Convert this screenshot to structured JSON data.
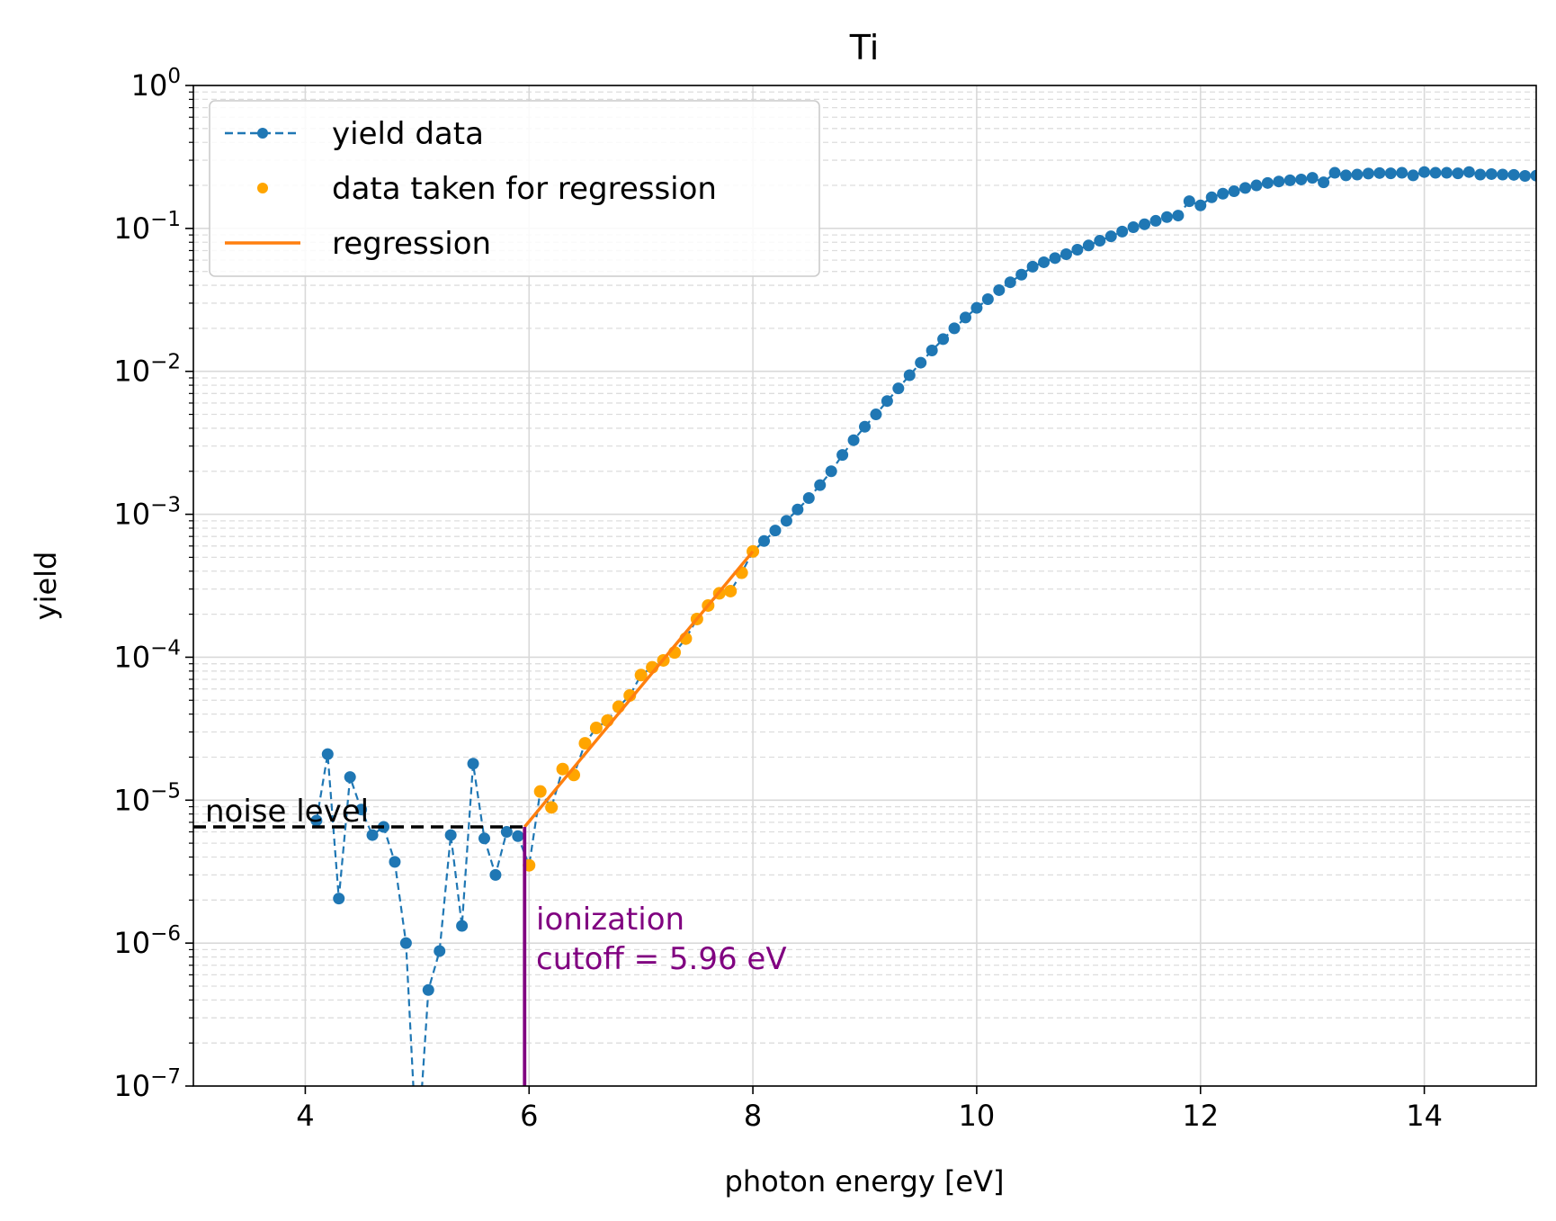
{
  "chart_data": {
    "type": "line",
    "title": "Ti",
    "xlabel": "photon energy [eV]",
    "ylabel": "yield",
    "xlim": [
      3,
      15
    ],
    "ylim": [
      1e-07,
      1
    ],
    "yscale": "log",
    "grid": true,
    "legend_position": "top-left",
    "x_ticks": [
      4,
      6,
      8,
      10,
      12,
      14
    ],
    "y_ticks": [
      {
        "mantissa": "10",
        "exp": "−7",
        "value": 1e-07
      },
      {
        "mantissa": "10",
        "exp": "−6",
        "value": 1e-06
      },
      {
        "mantissa": "10",
        "exp": "−5",
        "value": 1e-05
      },
      {
        "mantissa": "10",
        "exp": "−4",
        "value": 0.0001
      },
      {
        "mantissa": "10",
        "exp": "−3",
        "value": 0.001
      },
      {
        "mantissa": "10",
        "exp": "−2",
        "value": 0.01
      },
      {
        "mantissa": "10",
        "exp": "−1",
        "value": 0.1
      },
      {
        "mantissa": "10",
        "exp": "0",
        "value": 1
      }
    ],
    "legend": {
      "yield": "yield data",
      "regression_points": "data taken for regression",
      "regression": "regression"
    },
    "colors": {
      "yield": "#1f77b4",
      "regression_points": "#ffa500",
      "regression": "#ff7f0e",
      "noise": "#000000",
      "cutoff": "#800080",
      "grid_major": "#d9d9d9",
      "grid_minor": "#dddddd"
    },
    "series": [
      {
        "name": "yield data",
        "x": [
          4.1,
          4.2,
          4.3,
          4.4,
          4.5,
          4.6,
          4.7,
          4.8,
          4.9,
          5.0,
          5.1,
          5.2,
          5.3,
          5.4,
          5.5,
          5.6,
          5.7,
          5.8,
          5.9,
          6.0,
          6.1,
          6.2,
          6.3,
          6.4,
          6.5,
          6.6,
          6.7,
          6.8,
          6.9,
          7.0,
          7.1,
          7.2,
          7.3,
          7.4,
          7.5,
          7.6,
          7.7,
          7.8,
          7.9,
          8.0,
          8.1,
          8.2,
          8.3,
          8.4,
          8.5,
          8.6,
          8.7,
          8.8,
          8.9,
          9.0,
          9.1,
          9.2,
          9.3,
          9.4,
          9.5,
          9.6,
          9.7,
          9.8,
          9.9,
          10.0,
          10.1,
          10.2,
          10.3,
          10.4,
          10.5,
          10.6,
          10.7,
          10.8,
          10.9,
          11.0,
          11.1,
          11.2,
          11.3,
          11.4,
          11.5,
          11.6,
          11.7,
          11.8,
          11.9,
          12.0,
          12.1,
          12.2,
          12.3,
          12.4,
          12.5,
          12.6,
          12.7,
          12.8,
          12.9,
          13.0,
          13.1,
          13.2,
          13.3,
          13.4,
          13.5,
          13.6,
          13.7,
          13.8,
          13.9,
          14.0,
          14.1,
          14.2,
          14.3,
          14.4,
          14.5,
          14.6,
          14.7,
          14.8,
          14.9,
          15.0
        ],
        "y": [
          7.2e-06,
          2.1e-05,
          2.05e-06,
          1.45e-05,
          8.6e-06,
          5.7e-06,
          6.5e-06,
          3.7e-06,
          1e-06,
          3e-08,
          4.7e-07,
          8.8e-07,
          5.7e-06,
          1.32e-06,
          1.8e-05,
          5.4e-06,
          3e-06,
          6e-06,
          5.6e-06,
          3.5e-06,
          1.15e-05,
          8.9e-06,
          1.65e-05,
          1.5e-05,
          2.5e-05,
          3.2e-05,
          3.6e-05,
          4.5e-05,
          5.4e-05,
          7.5e-05,
          8.5e-05,
          9.5e-05,
          0.000108,
          0.000135,
          0.000185,
          0.00023,
          0.00028,
          0.00029,
          0.00039,
          0.00055,
          0.00065,
          0.00077,
          0.0009,
          0.00108,
          0.0013,
          0.0016,
          0.002,
          0.0026,
          0.0033,
          0.0041,
          0.005,
          0.0062,
          0.0076,
          0.0094,
          0.0115,
          0.014,
          0.0168,
          0.02,
          0.0238,
          0.0278,
          0.032,
          0.037,
          0.042,
          0.0475,
          0.054,
          0.058,
          0.062,
          0.066,
          0.071,
          0.076,
          0.082,
          0.088,
          0.095,
          0.102,
          0.107,
          0.113,
          0.12,
          0.123,
          0.155,
          0.145,
          0.165,
          0.175,
          0.182,
          0.192,
          0.2,
          0.208,
          0.213,
          0.217,
          0.22,
          0.226,
          0.21,
          0.245,
          0.235,
          0.238,
          0.242,
          0.244,
          0.243,
          0.245,
          0.235,
          0.248,
          0.245,
          0.245,
          0.243,
          0.248,
          0.238,
          0.24,
          0.238,
          0.237,
          0.233,
          0.234
        ]
      },
      {
        "name": "data taken for regression",
        "x": [
          6.0,
          6.1,
          6.2,
          6.3,
          6.4,
          6.5,
          6.6,
          6.7,
          6.8,
          6.9,
          7.0,
          7.1,
          7.2,
          7.3,
          7.4,
          7.5,
          7.6,
          7.7,
          7.8,
          7.9,
          8.0
        ],
        "y": [
          3.5e-06,
          1.15e-05,
          8.9e-06,
          1.65e-05,
          1.5e-05,
          2.5e-05,
          3.2e-05,
          3.6e-05,
          4.5e-05,
          5.4e-05,
          7.5e-05,
          8.5e-05,
          9.5e-05,
          0.000108,
          0.000135,
          0.000185,
          0.00023,
          0.00028,
          0.00029,
          0.00039,
          0.00055
        ]
      },
      {
        "name": "regression",
        "x": [
          5.96,
          8.0
        ],
        "y": [
          6.5e-06,
          0.00055
        ]
      }
    ],
    "noise_level": {
      "label": "noise level",
      "y": 6.5e-06,
      "x": [
        3,
        5.96
      ]
    },
    "cutoff": {
      "label_line1": "ionization",
      "label_line2": "cutoff = 5.96 eV",
      "x": 5.96,
      "y": [
        1e-07,
        6.5e-06
      ]
    }
  }
}
